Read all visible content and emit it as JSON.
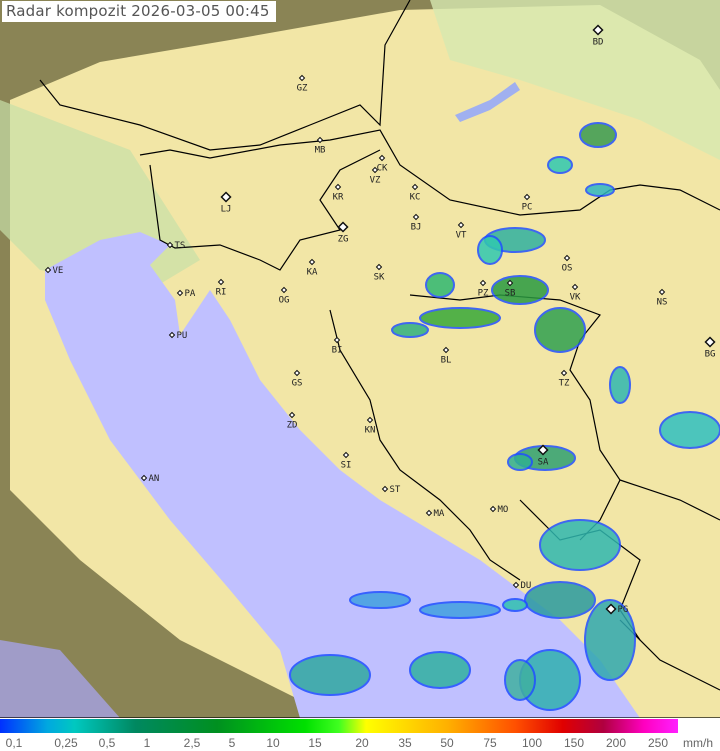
{
  "title": "Radar kompozit  2026-03-05   00:45",
  "colors": {
    "sea": "#c0c0ff",
    "land": "#f2e6a6",
    "coverage_outside": "#8a8455",
    "border": "#000000",
    "rain_low": "#30c8b0",
    "rain_mid": "#3a9a50",
    "rain_blue": "#2050ff"
  },
  "stations": [
    "BD",
    "GZ",
    "MB",
    "CK",
    "VZ",
    "KR",
    "KC",
    "LJ",
    "ZG",
    "BJ",
    "VT",
    "PC",
    "TS",
    "VE",
    "RI",
    "KA",
    "SK",
    "OS",
    "PA",
    "OG",
    "PZ",
    "SB",
    "VK",
    "NS",
    "PU",
    "BI",
    "BL",
    "BG",
    "GS",
    "TZ",
    "ZD",
    "KN",
    "SI",
    "SA",
    "AN",
    "ST",
    "MA",
    "MO",
    "DU",
    "PG"
  ],
  "legend": {
    "unit": "mm/h",
    "values": [
      "0,1",
      "0,25",
      "0,5",
      "1",
      "2,5",
      "5",
      "10",
      "15",
      "20",
      "35",
      "50",
      "75",
      "100",
      "150",
      "200",
      "250"
    ]
  }
}
